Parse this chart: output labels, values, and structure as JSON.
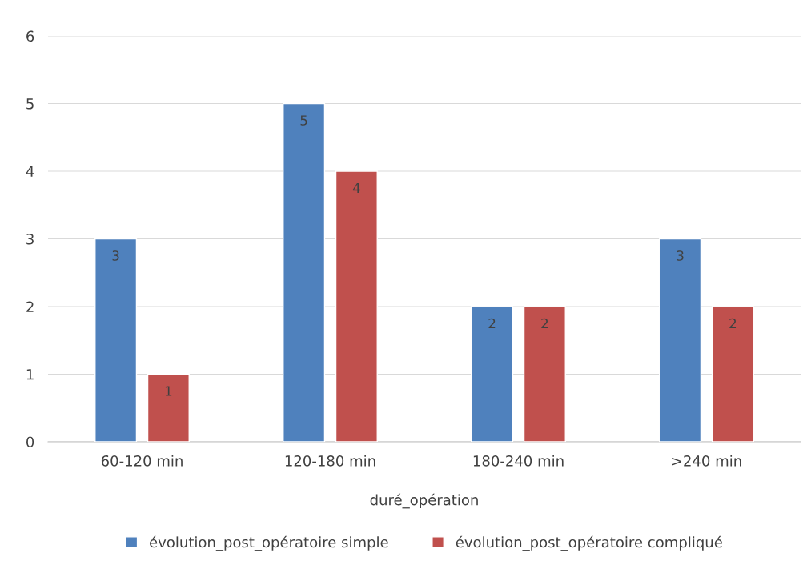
{
  "chart_data": {
    "type": "bar",
    "xlabel": "duré_opération",
    "categories": [
      "60-120 min",
      "120-180 min",
      "180-240 min",
      ">240 min"
    ],
    "series": [
      {
        "name": "évolution_post_opératoire simple",
        "color": "#4f81bd",
        "values": [
          3,
          5,
          2,
          3
        ]
      },
      {
        "name": "évolution_post_opératoire compliqué",
        "color": "#c0504d",
        "values": [
          1,
          4,
          2,
          2
        ]
      }
    ],
    "ylim": [
      0,
      6
    ],
    "yticks": [
      0,
      1,
      2,
      3,
      4,
      5,
      6
    ],
    "grid": "y",
    "legend": "bottom",
    "data_labels": true
  }
}
